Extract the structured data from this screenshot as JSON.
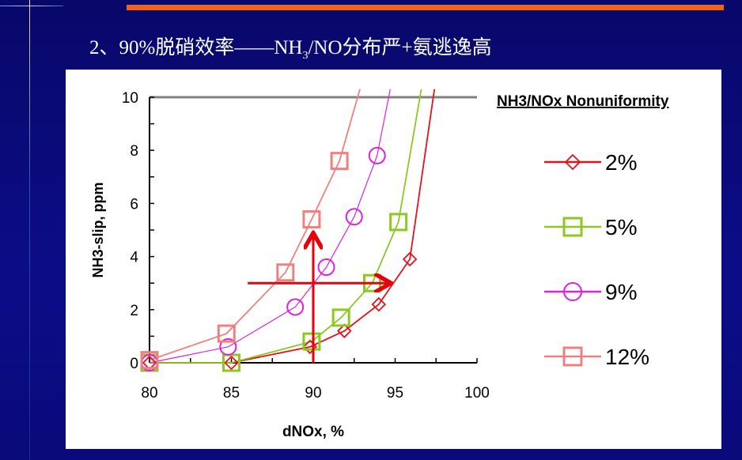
{
  "slide": {
    "title_pre": "2、90%脱硝效率——NH",
    "title_sub": "3",
    "title_post": "/NO分布严+氨逃逸高"
  },
  "colors": {
    "background": "#0a0a7a",
    "accent_bar": "#f0621e",
    "arrow": "#e8000a"
  },
  "chart_data": {
    "type": "line",
    "xlabel": "dNOx, %",
    "ylabel": "NH3-slip, ppm",
    "xlim": [
      80,
      100
    ],
    "ylim": [
      0,
      10
    ],
    "xticks": [
      80,
      85,
      90,
      95,
      100
    ],
    "yticks": [
      0,
      2,
      4,
      6,
      8,
      10
    ],
    "legend_title": "NH3/NOx Nonuniformity",
    "legend_position": "right",
    "grid": false,
    "series": [
      {
        "name": "2%",
        "color": "#e8101a",
        "marker": "diamond",
        "x": [
          80,
          85,
          89.8,
          91.9,
          94.0,
          95.9,
          97.4
        ],
        "y": [
          0,
          0,
          0.6,
          1.2,
          2.2,
          3.9,
          10.3
        ],
        "marker_count": 6
      },
      {
        "name": "5%",
        "color": "#8cc820",
        "marker": "square",
        "x": [
          80,
          85,
          89.9,
          91.7,
          93.6,
          95.2,
          96.6
        ],
        "y": [
          0,
          0,
          0.8,
          1.7,
          3.0,
          5.3,
          10.3
        ],
        "marker_count": 6
      },
      {
        "name": "9%",
        "color": "#e020e0",
        "marker": "circle",
        "x": [
          80,
          84.8,
          88.9,
          90.8,
          92.5,
          93.9,
          94.7
        ],
        "y": [
          0,
          0.6,
          2.1,
          3.6,
          5.5,
          7.8,
          10.3
        ],
        "marker_count": 6
      },
      {
        "name": "12%",
        "color": "#f08080",
        "marker": "square",
        "x": [
          80,
          84.7,
          88.3,
          89.9,
          91.6,
          92.85
        ],
        "y": [
          0.1,
          1.1,
          3.4,
          5.4,
          7.6,
          10.3
        ],
        "marker_count": 5
      }
    ],
    "annotations": [
      {
        "type": "arrow",
        "from": [
          86,
          3.0
        ],
        "to": [
          94.6,
          3.0
        ]
      },
      {
        "type": "arrow",
        "from": [
          90,
          0
        ],
        "to": [
          90,
          4.8
        ]
      }
    ]
  }
}
